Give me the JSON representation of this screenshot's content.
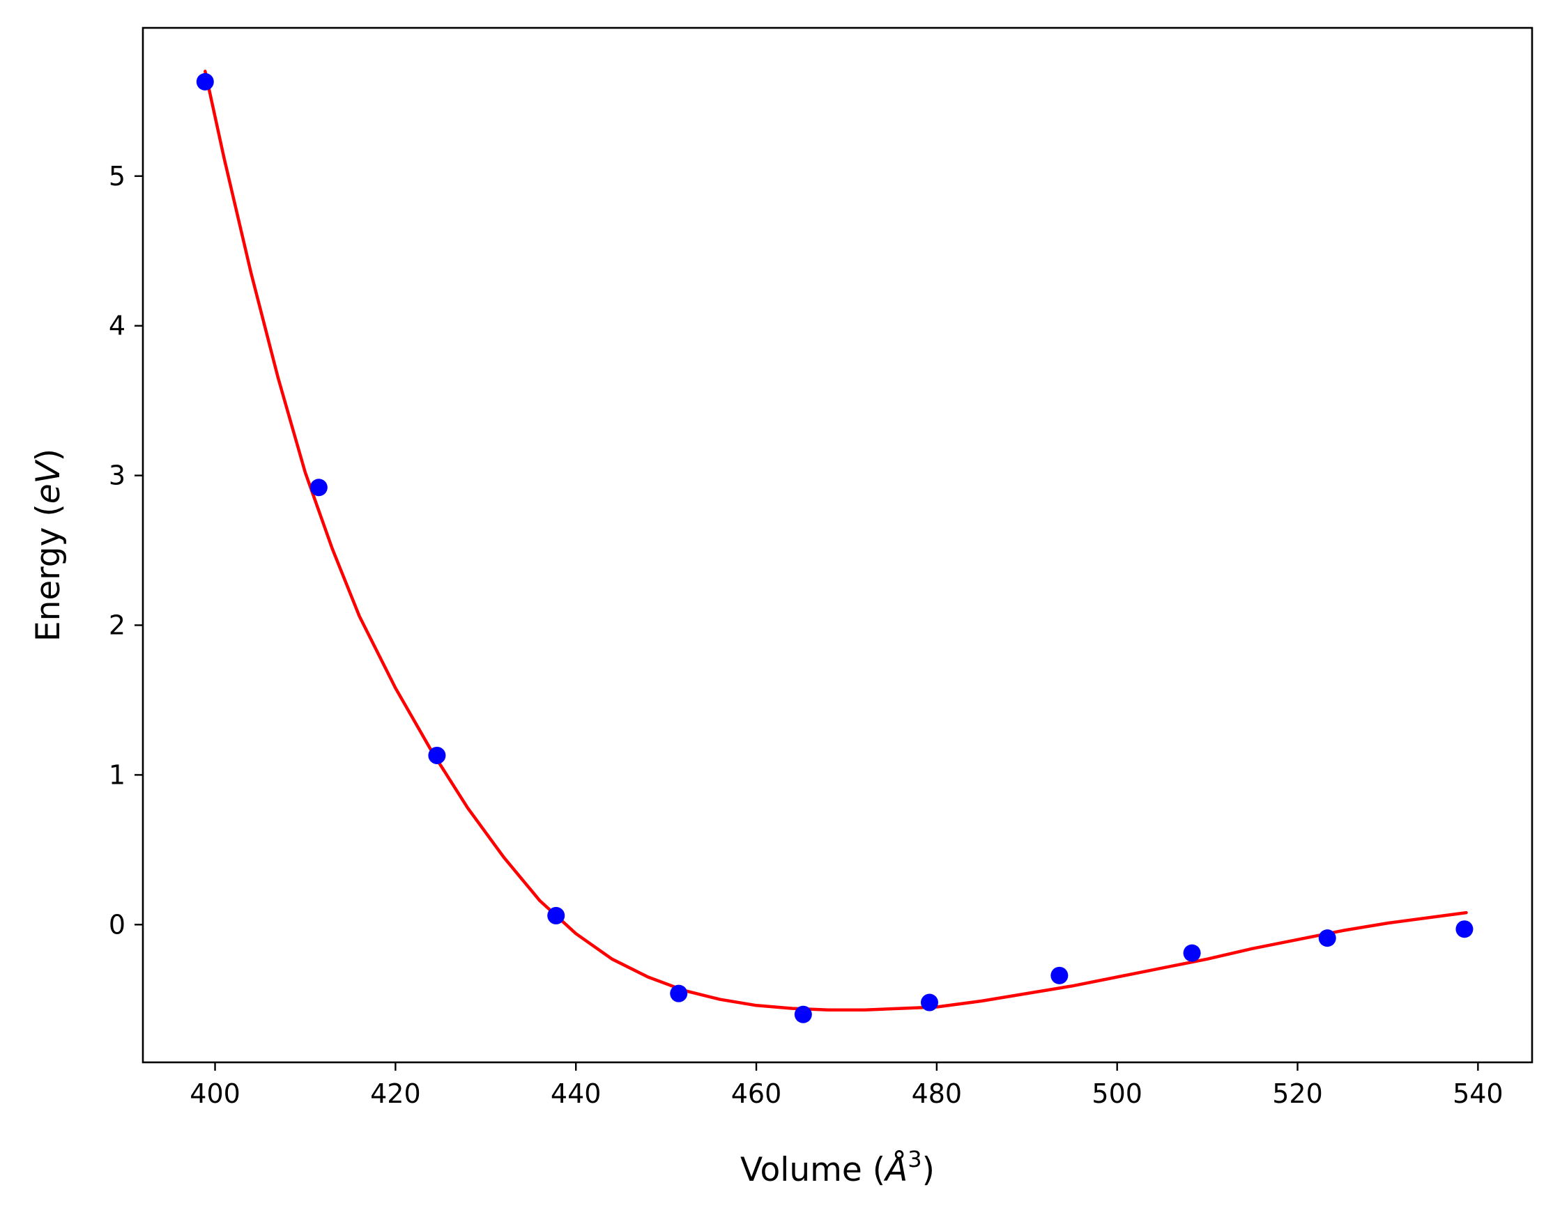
{
  "chart_data": {
    "type": "scatter",
    "title": "",
    "xlabel": {
      "prefix": "Volume (",
      "unit": "Å",
      "sup": "3",
      "suffix": ")"
    },
    "ylabel": {
      "prefix": "Energy (",
      "unit": "eV",
      "suffix": ")"
    },
    "xlim": [
      392,
      546
    ],
    "ylim": [
      -0.92,
      5.99
    ],
    "xticks": [
      400,
      420,
      440,
      460,
      480,
      500,
      520,
      540
    ],
    "yticks": [
      0,
      1,
      2,
      3,
      4,
      5
    ],
    "grid": false,
    "legend": "none",
    "series": [
      {
        "kind": "points",
        "color": "#0000ff",
        "x": [
          398.9,
          411.5,
          424.6,
          437.8,
          451.4,
          465.2,
          479.2,
          493.6,
          508.3,
          523.3,
          538.5
        ],
        "y": [
          5.63,
          2.92,
          1.13,
          0.06,
          -0.46,
          -0.6,
          -0.52,
          -0.34,
          -0.19,
          -0.09,
          -0.03
        ]
      },
      {
        "kind": "fit-line",
        "color": "#ff0000",
        "x": [
          398.9,
          401.0,
          404.0,
          407.0,
          410.0,
          413.0,
          416.0,
          420.0,
          424.0,
          428.0,
          432.0,
          436.0,
          440.0,
          444.0,
          448.0,
          452.0,
          456.0,
          460.0,
          464.0,
          468.0,
          472.0,
          476.0,
          480.0,
          485.0,
          490.0,
          495.0,
          500.0,
          505.0,
          510.0,
          515.0,
          520.0,
          525.0,
          530.0,
          535.0,
          538.7
        ],
        "y": [
          5.7,
          5.12,
          4.35,
          3.65,
          3.02,
          2.51,
          2.06,
          1.58,
          1.16,
          0.78,
          0.45,
          0.16,
          -0.06,
          -0.23,
          -0.35,
          -0.44,
          -0.5,
          -0.54,
          -0.56,
          -0.57,
          -0.57,
          -0.56,
          -0.55,
          -0.51,
          -0.46,
          -0.41,
          -0.35,
          -0.29,
          -0.23,
          -0.16,
          -0.1,
          -0.04,
          0.01,
          0.05,
          0.08
        ]
      }
    ]
  }
}
